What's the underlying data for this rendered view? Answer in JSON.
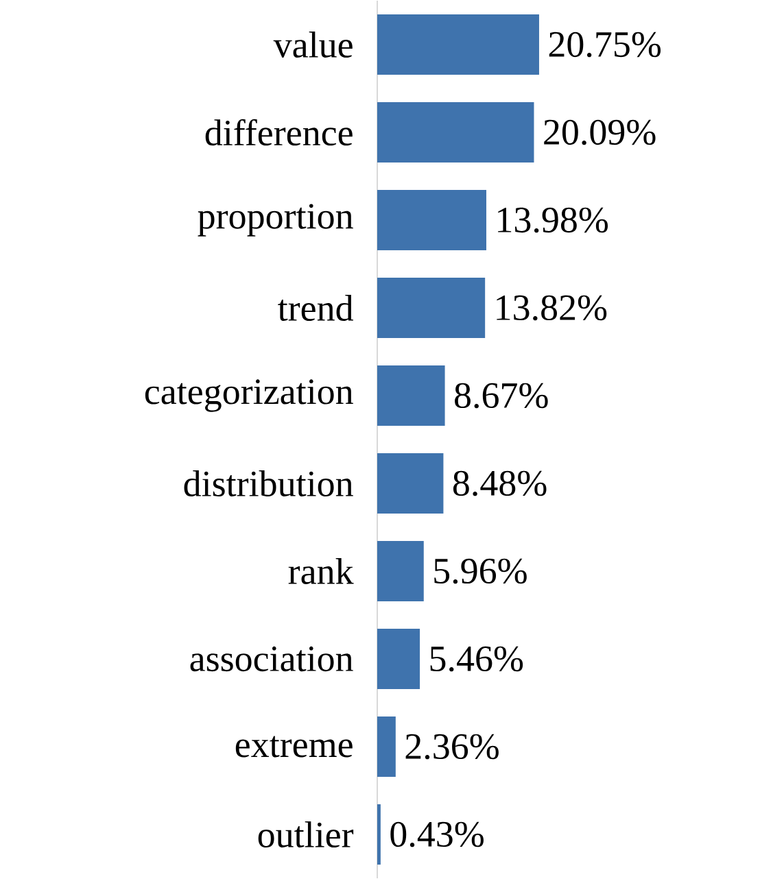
{
  "chart_data": {
    "type": "bar",
    "orientation": "horizontal",
    "categories": [
      "value",
      "difference",
      "proportion",
      "trend",
      "categorization",
      "distribution",
      "rank",
      "association",
      "extreme",
      "outlier"
    ],
    "values": [
      20.75,
      20.09,
      13.98,
      13.82,
      8.67,
      8.48,
      5.96,
      5.46,
      2.36,
      0.43
    ],
    "value_labels": [
      "20.75%",
      "20.09%",
      "13.98%",
      "13.82%",
      "8.67%",
      "8.48%",
      "5.96%",
      "5.46%",
      "2.36%",
      "0.43%"
    ],
    "color": "#3f73ad"
  }
}
